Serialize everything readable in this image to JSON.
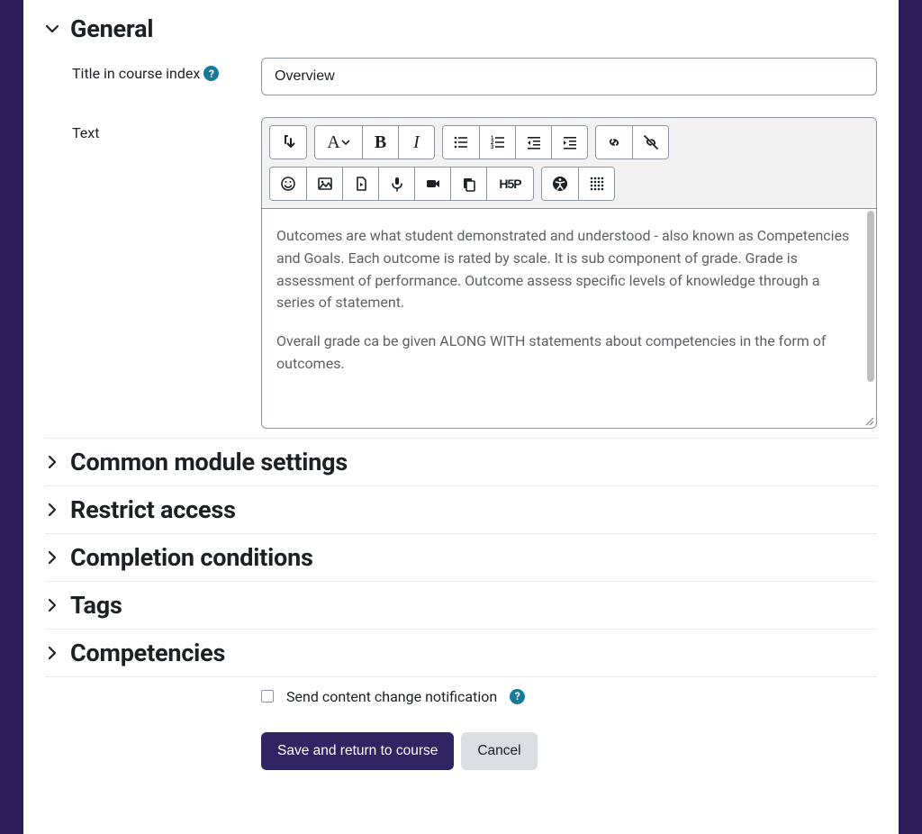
{
  "colors": {
    "page_bg": "#2c1d58",
    "panel_bg": "#ffffff",
    "text": "#1d2125",
    "muted_text": "#5c5f63",
    "border": "#8f959e",
    "divider": "#e9ecef",
    "toolbar_bg": "#f2f2f2",
    "help_badge_bg": "#187a9b",
    "primary_btn_bg": "#302463",
    "secondary_btn_bg": "#dadde1",
    "scrollbar": "#bfbfbf"
  },
  "general": {
    "title": "General",
    "title_field": {
      "label": "Title in course index",
      "value": "Overview"
    },
    "text_field": {
      "label": "Text"
    },
    "editor": {
      "paragraphs": [
        "Outcomes are what student demonstrated and understood - also known as Competencies and Goals. Each outcome is rated by scale. It is sub component of grade. Grade is assessment of performance. Outcome assess specific levels of knowledge through a series of statement.",
        "Overall grade ca be given ALONG WITH statements about competencies in the form of outcomes."
      ],
      "toolbar_icons": [
        "paragraph-direction-icon",
        "font-style-icon",
        "bold-icon",
        "italic-icon",
        "bullet-list-icon",
        "numbered-list-icon",
        "outdent-icon",
        "indent-icon",
        "link-icon",
        "unlink-icon",
        "emoji-icon",
        "image-icon",
        "media-icon",
        "microphone-icon",
        "video-icon",
        "manage-files-icon",
        "h5p-icon",
        "accessibility-icon",
        "grid-icon"
      ]
    }
  },
  "collapsed_sections": [
    "Common module settings",
    "Restrict access",
    "Completion conditions",
    "Tags",
    "Competencies"
  ],
  "h5p_label": "H5P",
  "notification": {
    "label": "Send content change notification",
    "checked": false
  },
  "buttons": {
    "save": "Save and return to course",
    "cancel": "Cancel"
  }
}
